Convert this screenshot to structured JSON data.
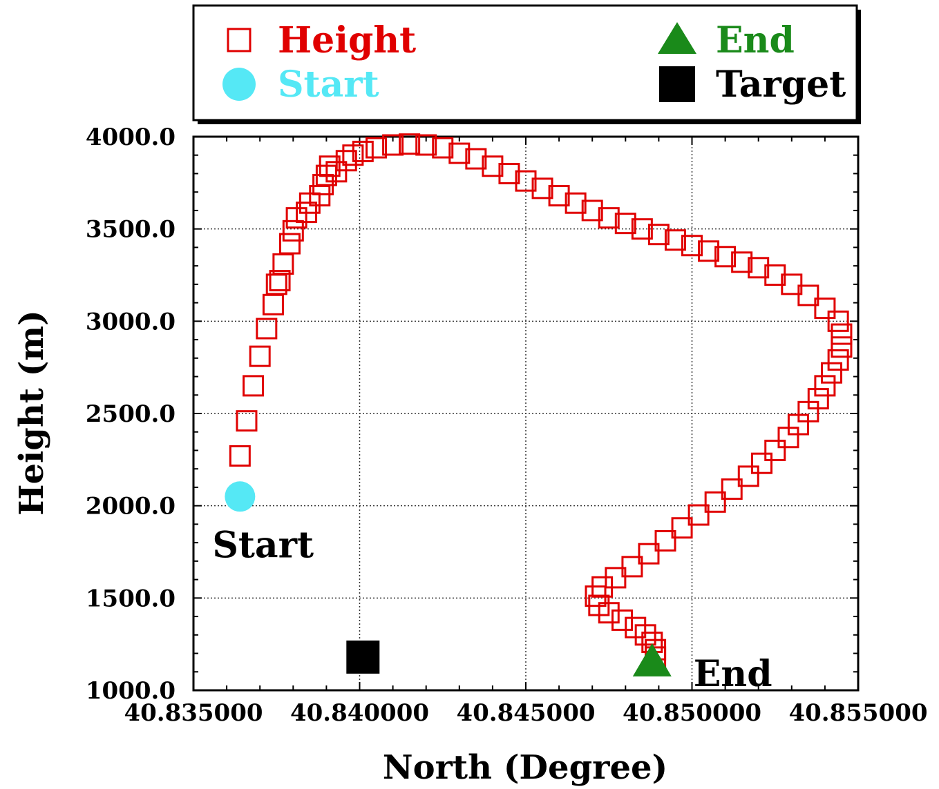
{
  "chart_data": {
    "type": "scatter",
    "title": "",
    "xlabel": "North (Degree)",
    "ylabel": "Height (m)",
    "xlim": [
      40.835,
      40.855
    ],
    "ylim": [
      1000,
      4000
    ],
    "xticks": [
      40.835,
      40.84,
      40.845,
      40.85,
      40.855
    ],
    "xtick_labels": [
      "40.835000",
      "40.840000",
      "40.845000",
      "40.850000",
      "40.855000"
    ],
    "yticks": [
      1000,
      1500,
      2000,
      2500,
      3000,
      3500,
      4000
    ],
    "ytick_labels": [
      "1000.0",
      "1500.0",
      "2000.0",
      "2500.0",
      "3000.0",
      "3500.0",
      "4000.0"
    ],
    "grid": true,
    "legend_position": "top (above plot, boxed)",
    "series": [
      {
        "name": "Height",
        "marker": "open-square",
        "color": "#e00000",
        "points": [
          [
            40.8364,
            2270
          ],
          [
            40.8366,
            2460
          ],
          [
            40.8368,
            2650
          ],
          [
            40.837,
            2810
          ],
          [
            40.8372,
            2960
          ],
          [
            40.8374,
            3090
          ],
          [
            40.8375,
            3200
          ],
          [
            40.8376,
            3220
          ],
          [
            40.8377,
            3310
          ],
          [
            40.8379,
            3420
          ],
          [
            40.838,
            3490
          ],
          [
            40.8381,
            3560
          ],
          [
            40.8384,
            3590
          ],
          [
            40.8385,
            3640
          ],
          [
            40.8388,
            3680
          ],
          [
            40.8389,
            3740
          ],
          [
            40.839,
            3790
          ],
          [
            40.8391,
            3840
          ],
          [
            40.8393,
            3810
          ],
          [
            40.8396,
            3870
          ],
          [
            40.8398,
            3900
          ],
          [
            40.8401,
            3920
          ],
          [
            40.8405,
            3940
          ],
          [
            40.841,
            3955
          ],
          [
            40.8415,
            3960
          ],
          [
            40.842,
            3955
          ],
          [
            40.8425,
            3940
          ],
          [
            40.843,
            3910
          ],
          [
            40.8435,
            3880
          ],
          [
            40.844,
            3840
          ],
          [
            40.8445,
            3800
          ],
          [
            40.845,
            3760
          ],
          [
            40.8455,
            3720
          ],
          [
            40.846,
            3680
          ],
          [
            40.8465,
            3640
          ],
          [
            40.847,
            3600
          ],
          [
            40.8475,
            3560
          ],
          [
            40.848,
            3530
          ],
          [
            40.8485,
            3500
          ],
          [
            40.849,
            3470
          ],
          [
            40.8495,
            3440
          ],
          [
            40.85,
            3410
          ],
          [
            40.8505,
            3380
          ],
          [
            40.851,
            3350
          ],
          [
            40.8515,
            3320
          ],
          [
            40.852,
            3290
          ],
          [
            40.8525,
            3250
          ],
          [
            40.853,
            3200
          ],
          [
            40.8535,
            3140
          ],
          [
            40.854,
            3070
          ],
          [
            40.8544,
            3000
          ],
          [
            40.8545,
            2930
          ],
          [
            40.8545,
            2860
          ],
          [
            40.8544,
            2790
          ],
          [
            40.8542,
            2720
          ],
          [
            40.854,
            2650
          ],
          [
            40.8538,
            2580
          ],
          [
            40.8535,
            2510
          ],
          [
            40.8532,
            2440
          ],
          [
            40.8529,
            2370
          ],
          [
            40.8525,
            2300
          ],
          [
            40.8521,
            2230
          ],
          [
            40.8517,
            2160
          ],
          [
            40.8512,
            2090
          ],
          [
            40.8507,
            2020
          ],
          [
            40.8502,
            1950
          ],
          [
            40.8497,
            1880
          ],
          [
            40.8492,
            1810
          ],
          [
            40.8487,
            1740
          ],
          [
            40.8482,
            1670
          ],
          [
            40.8477,
            1610
          ],
          [
            40.8473,
            1560
          ],
          [
            40.8471,
            1510
          ],
          [
            40.8472,
            1460
          ],
          [
            40.8475,
            1420
          ],
          [
            40.8479,
            1380
          ],
          [
            40.8483,
            1340
          ],
          [
            40.8486,
            1300
          ],
          [
            40.8488,
            1260
          ],
          [
            40.8489,
            1220
          ],
          [
            40.8489,
            1180
          ]
        ]
      },
      {
        "name": "Start",
        "marker": "filled-circle",
        "color": "#55e8f5",
        "points": [
          [
            40.8364,
            2050
          ]
        ]
      },
      {
        "name": "End",
        "marker": "filled-triangle",
        "color": "#1a8a1a",
        "points": [
          [
            40.8488,
            1150
          ]
        ]
      },
      {
        "name": "Target",
        "marker": "filled-square",
        "color": "#000000",
        "points": [
          [
            40.8401,
            1180
          ]
        ]
      }
    ],
    "annotations": [
      {
        "text": "Start",
        "x": 40.8364,
        "y": 2050
      },
      {
        "text": "End",
        "x": 40.8488,
        "y": 1150
      }
    ]
  }
}
